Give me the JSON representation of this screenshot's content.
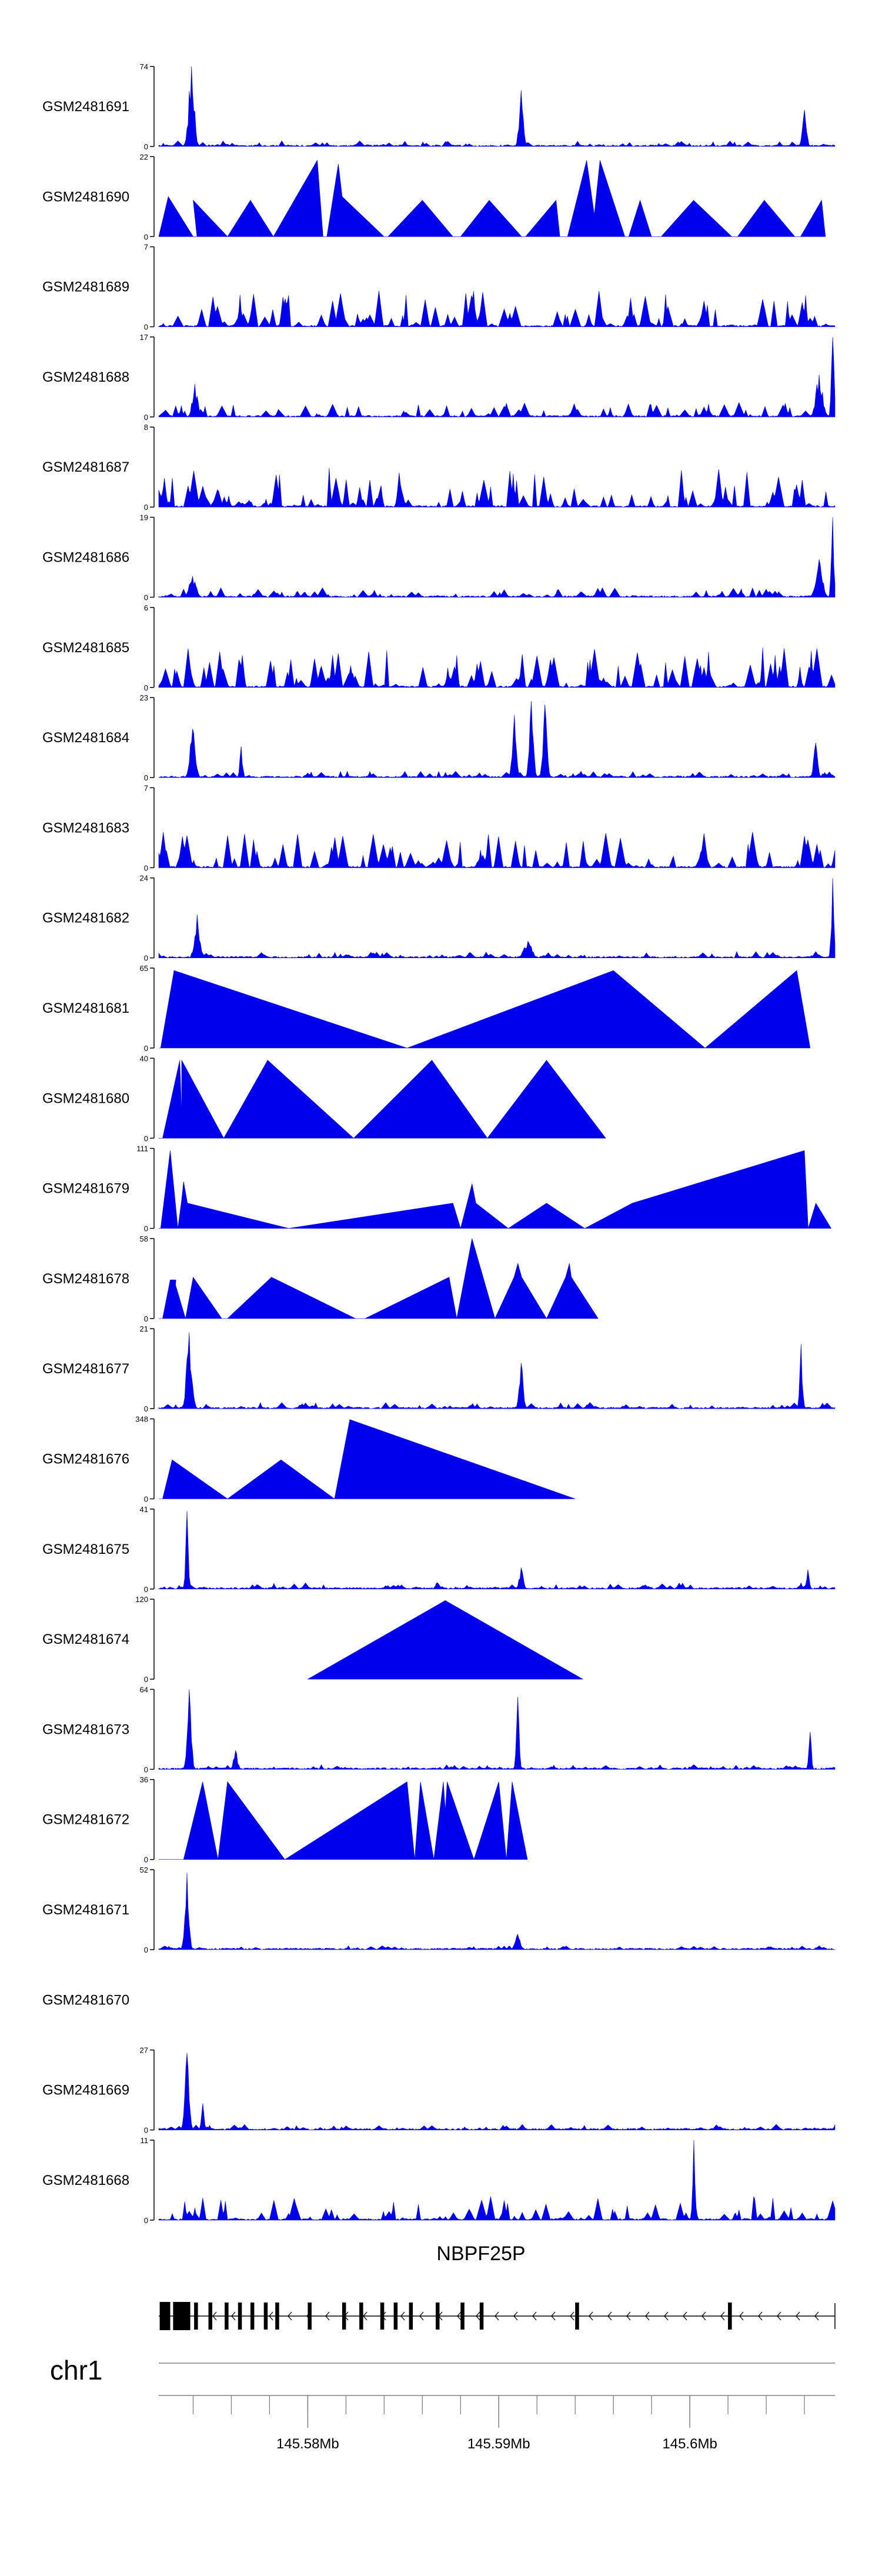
{
  "colors": {
    "signal": "#0000ee",
    "axis": "#000000",
    "gene": "#000000",
    "background": "#ffffff"
  },
  "chart_data": {
    "type": "area",
    "title": "",
    "xlabel": "",
    "ylabel": "",
    "x_unit": "Mb",
    "chromosome": "chr1",
    "gene": "NBPF25P",
    "x_range_mb": [
      145.5722,
      145.6076
    ],
    "x_ticks_mb": [
      145.58,
      145.59,
      145.6
    ],
    "x_tick_labels": [
      "145.58Mb",
      "145.59Mb",
      "145.6Mb"
    ],
    "minor_tick_step_mb": 0.002,
    "tracks": [
      {
        "name": "GSM2481691",
        "max": 74,
        "peaks": [
          [
            145.5739,
            74,
            0.5
          ],
          [
            145.5912,
            52,
            0.4
          ],
          [
            145.606,
            34,
            0.4
          ]
        ],
        "noise": 0.07,
        "density": 120
      },
      {
        "name": "GSM2481690",
        "max": 22,
        "profile": [
          [
            145.5722,
            0
          ],
          [
            145.5727,
            11
          ],
          [
            145.574,
            0
          ],
          [
            145.5742,
            0
          ],
          [
            145.574,
            10
          ],
          [
            145.5758,
            0
          ],
          [
            145.577,
            10
          ],
          [
            145.577,
            2
          ],
          [
            145.577,
            10
          ],
          [
            145.5782,
            0
          ],
          [
            145.5794,
            11
          ],
          [
            145.5805,
            21
          ],
          [
            145.5808,
            0
          ],
          [
            145.581,
            0
          ],
          [
            145.5816,
            20
          ],
          [
            145.5818,
            11
          ],
          [
            145.584,
            0
          ],
          [
            145.5842,
            0
          ],
          [
            145.586,
            10
          ],
          [
            145.5876,
            0
          ],
          [
            145.588,
            0
          ],
          [
            145.5895,
            10
          ],
          [
            145.5912,
            0
          ],
          [
            145.5914,
            0
          ],
          [
            145.593,
            10
          ],
          [
            145.5932,
            0
          ],
          [
            145.5936,
            0
          ],
          [
            145.5946,
            21
          ],
          [
            145.595,
            6
          ],
          [
            145.5953,
            21
          ],
          [
            145.5966,
            0
          ],
          [
            145.5968,
            0
          ],
          [
            145.5974,
            10
          ],
          [
            145.598,
            0
          ],
          [
            145.5985,
            0
          ],
          [
            145.6002,
            10
          ],
          [
            145.6022,
            0
          ],
          [
            145.6025,
            0
          ],
          [
            145.6039,
            10
          ],
          [
            145.6055,
            0
          ],
          [
            145.6058,
            0
          ],
          [
            145.6069,
            10
          ],
          [
            145.6071,
            0
          ]
        ]
      },
      {
        "name": "GSM2481689",
        "max": 7,
        "peaks": [],
        "noise": 0.45,
        "density": 140
      },
      {
        "name": "GSM2481688",
        "max": 17,
        "peaks": [
          [
            145.5741,
            7,
            0.5
          ],
          [
            145.6068,
            9,
            0.6
          ],
          [
            145.6075,
            17,
            0.2
          ]
        ],
        "noise": 0.18,
        "density": 130
      },
      {
        "name": "GSM2481687",
        "max": 8,
        "peaks": [],
        "noise": 0.5,
        "density": 150
      },
      {
        "name": "GSM2481686",
        "max": 19,
        "peaks": [
          [
            145.574,
            5,
            0.6
          ],
          [
            145.6068,
            9,
            0.6
          ],
          [
            145.6075,
            19,
            0.2
          ]
        ],
        "noise": 0.12,
        "density": 130
      },
      {
        "name": "GSM2481685",
        "max": 6,
        "peaks": [],
        "noise": 0.5,
        "density": 150
      },
      {
        "name": "GSM2481684",
        "max": 23,
        "peaks": [
          [
            145.574,
            14,
            0.5
          ],
          [
            145.5765,
            9,
            0.3
          ],
          [
            145.5908,
            18,
            0.4
          ],
          [
            145.5917,
            22,
            0.4
          ],
          [
            145.5924,
            21,
            0.4
          ],
          [
            145.6066,
            10,
            0.4
          ]
        ],
        "noise": 0.08,
        "density": 130
      },
      {
        "name": "GSM2481683",
        "max": 7,
        "peaks": [],
        "noise": 0.45,
        "density": 150
      },
      {
        "name": "GSM2481682",
        "max": 24,
        "peaks": [
          [
            145.5742,
            13,
            0.5
          ],
          [
            145.5915,
            5,
            0.8
          ],
          [
            145.6075,
            24,
            0.2
          ]
        ],
        "noise": 0.08,
        "density": 130
      },
      {
        "name": "GSM2481681",
        "max": 65,
        "profile": [
          [
            145.5722,
            0
          ],
          [
            145.5723,
            0
          ],
          [
            145.573,
            63
          ],
          [
            145.5852,
            0
          ],
          [
            145.596,
            63
          ],
          [
            145.6008,
            0
          ],
          [
            145.6056,
            63
          ],
          [
            145.6063,
            0
          ]
        ]
      },
      {
        "name": "GSM2481680",
        "max": 40,
        "profile": [
          [
            145.5722,
            0
          ],
          [
            145.5724,
            0
          ],
          [
            145.5733,
            39
          ],
          [
            145.5734,
            11
          ],
          [
            145.5734,
            39
          ],
          [
            145.5756,
            0
          ],
          [
            145.5779,
            39
          ],
          [
            145.5779,
            11
          ],
          [
            145.5779,
            39
          ],
          [
            145.5824,
            0
          ],
          [
            145.5865,
            39
          ],
          [
            145.5894,
            0
          ],
          [
            145.5925,
            39
          ],
          [
            145.5956,
            0
          ]
        ]
      },
      {
        "name": "GSM2481679",
        "max": 111,
        "profile": [
          [
            145.5722,
            0
          ],
          [
            145.5723,
            0
          ],
          [
            145.5728,
            108
          ],
          [
            145.5732,
            0
          ],
          [
            145.5734,
            40
          ],
          [
            145.5735,
            65
          ],
          [
            145.5737,
            35
          ],
          [
            145.579,
            0
          ],
          [
            145.5876,
            35
          ],
          [
            145.588,
            0
          ],
          [
            145.5886,
            62
          ],
          [
            145.5888,
            35
          ],
          [
            145.5905,
            0
          ],
          [
            145.5925,
            35
          ],
          [
            145.5945,
            0
          ],
          [
            145.597,
            35
          ],
          [
            145.606,
            108
          ],
          [
            145.6062,
            0
          ],
          [
            145.6066,
            35
          ],
          [
            145.6074,
            0
          ]
        ]
      },
      {
        "name": "GSM2481678",
        "max": 58,
        "profile": [
          [
            145.5722,
            0
          ],
          [
            145.5724,
            0
          ],
          [
            145.5728,
            28
          ],
          [
            145.5731,
            28
          ],
          [
            145.573,
            10
          ],
          [
            145.573,
            28
          ],
          [
            145.5736,
            0
          ],
          [
            145.574,
            30
          ],
          [
            145.5755,
            0
          ],
          [
            145.5758,
            0
          ],
          [
            145.5781,
            30
          ],
          [
            145.5825,
            0
          ],
          [
            145.583,
            0
          ],
          [
            145.5874,
            30
          ],
          [
            145.5878,
            0
          ],
          [
            145.5886,
            58
          ],
          [
            145.5898,
            0
          ],
          [
            145.5908,
            30
          ],
          [
            145.591,
            40
          ],
          [
            145.5912,
            30
          ],
          [
            145.5925,
            0
          ],
          [
            145.5935,
            30
          ],
          [
            145.5937,
            40
          ],
          [
            145.5938,
            30
          ],
          [
            145.5952,
            0
          ]
        ]
      },
      {
        "name": "GSM2481677",
        "max": 21,
        "peaks": [
          [
            145.5738,
            20,
            0.45
          ],
          [
            145.5912,
            12,
            0.4
          ],
          [
            145.6058,
            17,
            0.3
          ]
        ],
        "noise": 0.08,
        "density": 130
      },
      {
        "name": "GSM2481676",
        "max": 348,
        "profile": [
          [
            145.5722,
            0
          ],
          [
            145.5724,
            0
          ],
          [
            145.5729,
            170
          ],
          [
            145.5758,
            0
          ],
          [
            145.5786,
            170
          ],
          [
            145.5814,
            0
          ],
          [
            145.5822,
            345
          ],
          [
            145.594,
            0
          ]
        ]
      },
      {
        "name": "GSM2481675",
        "max": 41,
        "peaks": [
          [
            145.5737,
            40,
            0.3
          ],
          [
            145.5912,
            11,
            0.4
          ],
          [
            145.6062,
            10,
            0.3
          ]
        ],
        "noise": 0.08,
        "density": 130
      },
      {
        "name": "GSM2481674",
        "max": 120,
        "profile": [
          [
            145.58,
            0
          ],
          [
            145.5872,
            118
          ],
          [
            145.5944,
            0
          ]
        ]
      },
      {
        "name": "GSM2481673",
        "max": 64,
        "peaks": [
          [
            145.5738,
            64,
            0.4
          ],
          [
            145.5762,
            15,
            0.4
          ],
          [
            145.591,
            58,
            0.3
          ],
          [
            145.6063,
            30,
            0.3
          ]
        ],
        "noise": 0.06,
        "density": 130
      },
      {
        "name": "GSM2481672",
        "max": 36,
        "profile": [
          [
            145.5722,
            0
          ],
          [
            145.5735,
            0
          ],
          [
            145.5745,
            35
          ],
          [
            145.5753,
            0
          ],
          [
            145.5758,
            35
          ],
          [
            145.5788,
            0
          ],
          [
            145.5852,
            35
          ],
          [
            145.5856,
            0
          ],
          [
            145.5859,
            35
          ],
          [
            145.5866,
            0
          ],
          [
            145.5871,
            35
          ],
          [
            145.5872,
            22
          ],
          [
            145.5873,
            35
          ],
          [
            145.5887,
            0
          ],
          [
            145.59,
            35
          ],
          [
            145.5904,
            0
          ],
          [
            145.5907,
            35
          ],
          [
            145.5915,
            0
          ]
        ]
      },
      {
        "name": "GSM2481671",
        "max": 52,
        "peaks": [
          [
            145.5737,
            50,
            0.4
          ],
          [
            145.591,
            10,
            0.5
          ]
        ],
        "noise": 0.05,
        "density": 120
      },
      {
        "name": "GSM2481670",
        "max": 0,
        "peaks": [],
        "noise": 0,
        "density": 0,
        "empty": true
      },
      {
        "name": "GSM2481669",
        "max": 27,
        "peaks": [
          [
            145.5737,
            26,
            0.4
          ],
          [
            145.5745,
            9,
            0.3
          ]
        ],
        "noise": 0.07,
        "density": 130
      },
      {
        "name": "GSM2481668",
        "max": 11,
        "peaks": [
          [
            145.6002,
            11,
            0.3
          ]
        ],
        "noise": 0.3,
        "density": 110
      }
    ],
    "exons_mb": [
      [
        145.57225,
        145.5728
      ],
      [
        145.57295,
        145.57385
      ],
      [
        145.57405,
        145.57425
      ],
      [
        145.5748,
        145.575
      ],
      [
        145.57565,
        145.57585
      ],
      [
        145.57635,
        145.57655
      ],
      [
        145.577,
        145.5772
      ],
      [
        145.5777,
        145.5779
      ],
      [
        145.5783,
        145.5785
      ],
      [
        145.58,
        145.5802
      ],
      [
        145.5818,
        145.582
      ],
      [
        145.5827,
        145.5829
      ],
      [
        145.5838,
        145.584
      ],
      [
        145.5845,
        145.5847
      ],
      [
        145.5853,
        145.5855
      ],
      [
        145.5867,
        145.5869
      ],
      [
        145.588,
        145.5882
      ],
      [
        145.589,
        145.5892
      ],
      [
        145.594,
        145.5942
      ],
      [
        145.602,
        145.6022
      ]
    ],
    "gene_span_mb": [
      145.5722,
      145.6076
    ]
  }
}
